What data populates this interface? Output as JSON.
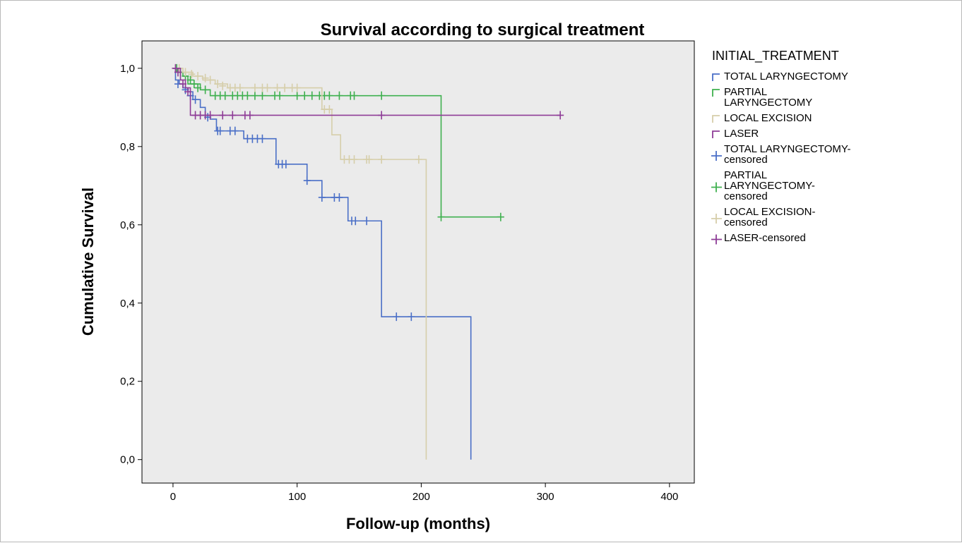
{
  "chart_data": {
    "type": "line",
    "title": "Survival according to surgical treatment",
    "xlabel": "Follow-up (months)",
    "ylabel": "Cumulative Survival",
    "xlim": [
      -25,
      420
    ],
    "ylim": [
      -0.06,
      1.07
    ],
    "x_ticks": [
      0,
      100,
      200,
      300,
      400
    ],
    "x_tick_labels": [
      "0",
      "100",
      "200",
      "300",
      "400"
    ],
    "y_ticks": [
      0.0,
      0.2,
      0.4,
      0.6,
      0.8,
      1.0
    ],
    "y_tick_labels": [
      "0,0",
      "0,2",
      "0,4",
      "0,6",
      "0,8",
      "1,0"
    ],
    "grid": false,
    "legend_position": "right",
    "legend_title": "INITIAL_TREATMENT",
    "legend": [
      {
        "lines": [
          "TOTAL LARYNGECTOMY"
        ],
        "color": "#4a6fc7",
        "censored": false
      },
      {
        "lines": [
          "PARTIAL",
          "LARYNGECTOMY"
        ],
        "color": "#3fb04f",
        "censored": false
      },
      {
        "lines": [
          "LOCAL EXCISION"
        ],
        "color": "#d6ceaa",
        "censored": false
      },
      {
        "lines": [
          "LASER"
        ],
        "color": "#8e3c97",
        "censored": false
      },
      {
        "lines": [
          "TOTAL LARYNGECTOMY-",
          "censored"
        ],
        "color": "#4a6fc7",
        "censored": true
      },
      {
        "lines": [
          "PARTIAL",
          "LARYNGECTOMY-",
          "censored"
        ],
        "color": "#3fb04f",
        "censored": true
      },
      {
        "lines": [
          "LOCAL EXCISION-",
          "censored"
        ],
        "color": "#d6ceaa",
        "censored": true
      },
      {
        "lines": [
          "LASER-censored"
        ],
        "color": "#8e3c97",
        "censored": true
      }
    ],
    "series": [
      {
        "color": "#4a6fc7",
        "steps": [
          [
            0,
            1.0
          ],
          [
            2,
            0.97
          ],
          [
            5,
            0.96
          ],
          [
            8,
            0.95
          ],
          [
            12,
            0.94
          ],
          [
            16,
            0.92
          ],
          [
            22,
            0.9
          ],
          [
            26,
            0.88
          ],
          [
            30,
            0.87
          ],
          [
            35,
            0.84
          ],
          [
            57,
            0.82
          ],
          [
            83,
            0.755
          ],
          [
            108,
            0.713
          ],
          [
            120,
            0.67
          ],
          [
            141,
            0.61
          ],
          [
            168,
            0.365
          ],
          [
            240,
            0.365
          ],
          [
            240,
            0.0
          ]
        ],
        "censored": [
          [
            4,
            0.96
          ],
          [
            10,
            0.945
          ],
          [
            14,
            0.93
          ],
          [
            18,
            0.92
          ],
          [
            28,
            0.875
          ],
          [
            36,
            0.84
          ],
          [
            38,
            0.84
          ],
          [
            46,
            0.84
          ],
          [
            50,
            0.84
          ],
          [
            60,
            0.82
          ],
          [
            64,
            0.82
          ],
          [
            68,
            0.82
          ],
          [
            72,
            0.82
          ],
          [
            85,
            0.755
          ],
          [
            88,
            0.755
          ],
          [
            91,
            0.755
          ],
          [
            108,
            0.713
          ],
          [
            120,
            0.67
          ],
          [
            130,
            0.67
          ],
          [
            134,
            0.67
          ],
          [
            144,
            0.61
          ],
          [
            147,
            0.61
          ],
          [
            156,
            0.61
          ],
          [
            180,
            0.365
          ],
          [
            192,
            0.365
          ]
        ]
      },
      {
        "color": "#3fb04f",
        "steps": [
          [
            0,
            1.0
          ],
          [
            4,
            0.99
          ],
          [
            8,
            0.98
          ],
          [
            12,
            0.96
          ],
          [
            22,
            0.945
          ],
          [
            30,
            0.93
          ],
          [
            216,
            0.93
          ],
          [
            216,
            0.62
          ],
          [
            264,
            0.62
          ]
        ],
        "censored": [
          [
            3,
            1.0
          ],
          [
            6,
            0.99
          ],
          [
            10,
            0.98
          ],
          [
            14,
            0.97
          ],
          [
            17,
            0.96
          ],
          [
            20,
            0.95
          ],
          [
            26,
            0.945
          ],
          [
            34,
            0.93
          ],
          [
            38,
            0.93
          ],
          [
            42,
            0.93
          ],
          [
            48,
            0.93
          ],
          [
            52,
            0.93
          ],
          [
            56,
            0.93
          ],
          [
            60,
            0.93
          ],
          [
            66,
            0.93
          ],
          [
            72,
            0.93
          ],
          [
            82,
            0.93
          ],
          [
            86,
            0.93
          ],
          [
            100,
            0.93
          ],
          [
            106,
            0.93
          ],
          [
            112,
            0.93
          ],
          [
            118,
            0.93
          ],
          [
            122,
            0.93
          ],
          [
            126,
            0.93
          ],
          [
            134,
            0.93
          ],
          [
            143,
            0.93
          ],
          [
            146,
            0.93
          ],
          [
            168,
            0.93
          ],
          [
            216,
            0.62
          ],
          [
            264,
            0.62
          ]
        ]
      },
      {
        "color": "#d6ceaa",
        "steps": [
          [
            0,
            1.0
          ],
          [
            8,
            0.99
          ],
          [
            16,
            0.98
          ],
          [
            24,
            0.97
          ],
          [
            34,
            0.96
          ],
          [
            44,
            0.95
          ],
          [
            120,
            0.95
          ],
          [
            120,
            0.895
          ],
          [
            128,
            0.895
          ],
          [
            128,
            0.83
          ],
          [
            135,
            0.83
          ],
          [
            135,
            0.767
          ],
          [
            204,
            0.767
          ],
          [
            204,
            0.0
          ]
        ],
        "censored": [
          [
            5,
            1.0
          ],
          [
            10,
            0.99
          ],
          [
            15,
            0.985
          ],
          [
            20,
            0.98
          ],
          [
            26,
            0.975
          ],
          [
            30,
            0.97
          ],
          [
            36,
            0.96
          ],
          [
            40,
            0.955
          ],
          [
            46,
            0.95
          ],
          [
            50,
            0.95
          ],
          [
            54,
            0.95
          ],
          [
            66,
            0.95
          ],
          [
            72,
            0.95
          ],
          [
            76,
            0.95
          ],
          [
            84,
            0.95
          ],
          [
            90,
            0.95
          ],
          [
            96,
            0.95
          ],
          [
            100,
            0.95
          ],
          [
            122,
            0.895
          ],
          [
            126,
            0.895
          ],
          [
            138,
            0.767
          ],
          [
            142,
            0.767
          ],
          [
            146,
            0.767
          ],
          [
            156,
            0.767
          ],
          [
            158,
            0.767
          ],
          [
            168,
            0.767
          ],
          [
            198,
            0.767
          ]
        ]
      },
      {
        "color": "#8e3c97",
        "steps": [
          [
            0,
            1.0
          ],
          [
            6,
            0.97
          ],
          [
            10,
            0.95
          ],
          [
            14,
            0.93
          ],
          [
            14,
            0.88
          ],
          [
            312,
            0.88
          ]
        ],
        "censored": [
          [
            2,
            1.0
          ],
          [
            4,
            0.99
          ],
          [
            8,
            0.96
          ],
          [
            12,
            0.94
          ],
          [
            18,
            0.88
          ],
          [
            22,
            0.88
          ],
          [
            26,
            0.88
          ],
          [
            30,
            0.88
          ],
          [
            40,
            0.88
          ],
          [
            48,
            0.88
          ],
          [
            58,
            0.88
          ],
          [
            62,
            0.88
          ],
          [
            168,
            0.88
          ],
          [
            312,
            0.88
          ]
        ]
      }
    ]
  }
}
